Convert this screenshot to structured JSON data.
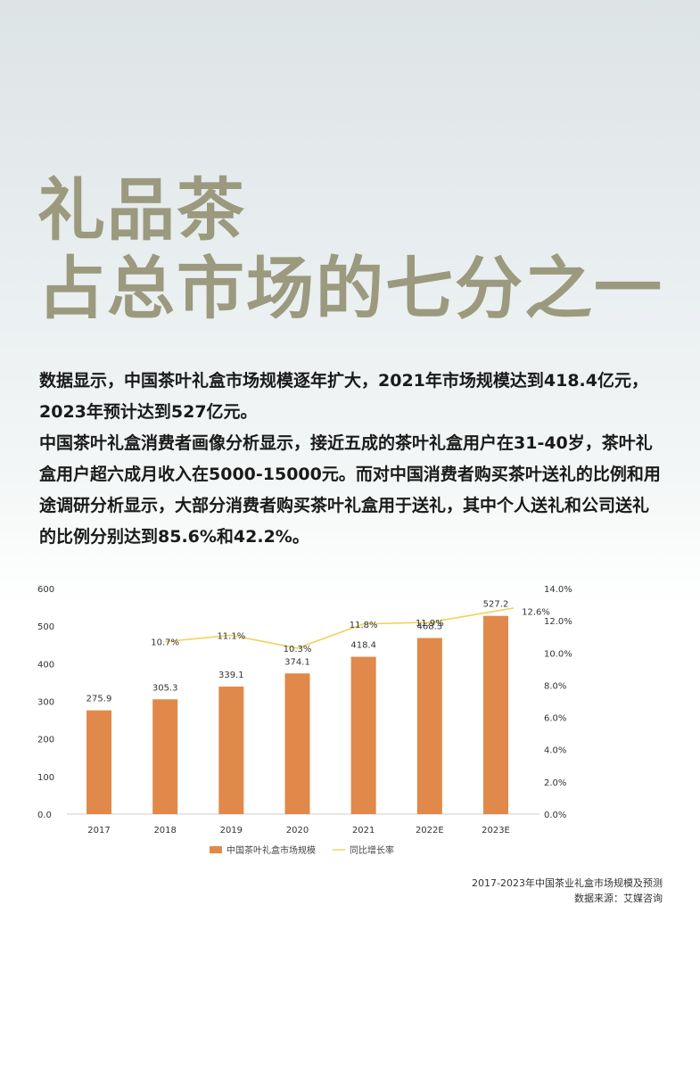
{
  "headline": {
    "line1": "礼品茶",
    "line2": "占总市场的七分之一"
  },
  "body": {
    "para1": "数据显示，中国茶叶礼盒市场规模逐年扩大，2021年市场规模达到418.4亿元，2023年预计达到527亿元。",
    "para2": "中国茶叶礼盒消费者画像分析显示，接近五成的茶叶礼盒用户在31-40岁，茶叶礼盒用户超六成月收入在5000-15000元。而对中国消费者购买茶叶送礼的比例和用途调研分析显示，大部分消费者购买茶叶礼盒用于送礼，其中个人送礼和公司送礼的比例分别达到85.6%和42.2%。"
  },
  "chart_data": {
    "type": "bar",
    "categories": [
      "2017",
      "2018",
      "2019",
      "2020",
      "2021",
      "2022E",
      "2023E"
    ],
    "series": [
      {
        "name": "中国茶叶礼盒市场规模",
        "type": "bar",
        "axis": "left",
        "values": [
          275.9,
          305.3,
          339.1,
          374.1,
          418.4,
          468.3,
          527.2
        ],
        "labels": [
          "275.9",
          "305.3",
          "339.1",
          "374.1",
          "418.4",
          "468.3",
          "527.2"
        ],
        "color": "#e0894a"
      },
      {
        "name": "同比增长率",
        "type": "line",
        "axis": "right",
        "values": [
          null,
          10.7,
          11.1,
          10.3,
          11.8,
          11.9,
          12.6
        ],
        "labels": [
          "",
          "10.7%",
          "11.1%",
          "10.3%",
          "11.8%",
          "11.9%",
          "12.6%"
        ],
        "color": "#f0d25a"
      }
    ],
    "ylim_left": [
      0,
      600
    ],
    "yticks_left": [
      "0.0",
      "100",
      "200",
      "300",
      "400",
      "500",
      "600"
    ],
    "ylim_right": [
      0,
      14
    ],
    "yticks_right": [
      "0.0%",
      "2.0%",
      "4.0%",
      "6.0%",
      "8.0%",
      "10.0%",
      "12.0%",
      "14.0%"
    ],
    "grid": false,
    "legend": "bottom-center"
  },
  "caption": {
    "title": "2017-2023年中国茶业礼盒市场规模及预测",
    "source": "数据来源：艾媒咨询"
  }
}
